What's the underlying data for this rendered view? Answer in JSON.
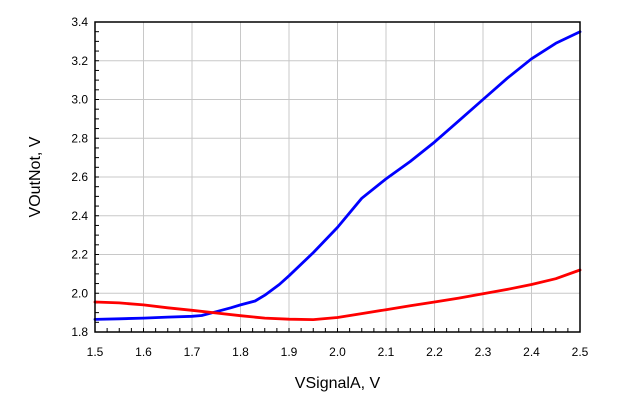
{
  "chart_data": {
    "type": "line",
    "xlabel": "VSignalA, V",
    "ylabel": "VOutNot, V",
    "xlim": [
      1.5,
      2.5
    ],
    "ylim": [
      1.8,
      3.4
    ],
    "xticks": [
      "1.5",
      "1.6",
      "1.7",
      "1.8",
      "1.9",
      "2.0",
      "2.1",
      "2.2",
      "2.3",
      "2.4",
      "2.5"
    ],
    "yticks": [
      "1.8",
      "2.0",
      "2.2",
      "2.4",
      "2.6",
      "2.8",
      "3.0",
      "3.2",
      "3.4"
    ],
    "grid": true,
    "series": [
      {
        "color": "#0000ff",
        "x": [
          1.5,
          1.55,
          1.6,
          1.65,
          1.7,
          1.72,
          1.75,
          1.78,
          1.8,
          1.83,
          1.85,
          1.88,
          1.9,
          1.95,
          2.0,
          2.05,
          2.1,
          2.15,
          2.2,
          2.25,
          2.3,
          2.35,
          2.4,
          2.45,
          2.5
        ],
        "y": [
          1.865,
          1.868,
          1.872,
          1.877,
          1.881,
          1.885,
          1.905,
          1.925,
          1.94,
          1.96,
          1.99,
          2.045,
          2.09,
          2.21,
          2.34,
          2.49,
          2.59,
          2.68,
          2.78,
          2.89,
          3.0,
          3.11,
          3.21,
          3.29,
          3.35
        ]
      },
      {
        "color": "#ff0000",
        "x": [
          1.5,
          1.55,
          1.6,
          1.65,
          1.7,
          1.75,
          1.8,
          1.85,
          1.9,
          1.95,
          2.0,
          2.05,
          2.1,
          2.15,
          2.2,
          2.25,
          2.3,
          2.35,
          2.4,
          2.45,
          2.5
        ],
        "y": [
          1.955,
          1.95,
          1.94,
          1.925,
          1.912,
          1.898,
          1.884,
          1.872,
          1.866,
          1.864,
          1.875,
          1.895,
          1.915,
          1.935,
          1.955,
          1.975,
          1.997,
          2.02,
          2.045,
          2.075,
          2.12
        ]
      }
    ]
  }
}
